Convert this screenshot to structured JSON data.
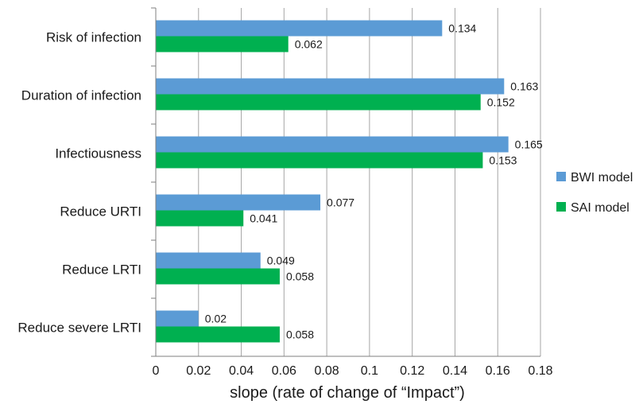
{
  "chart_data": {
    "type": "bar",
    "orientation": "horizontal",
    "categories": [
      "Risk of infection",
      "Duration of infection",
      "Infectiousness",
      "Reduce URTI",
      "Reduce LRTI",
      "Reduce severe LRTI"
    ],
    "series": [
      {
        "name": "BWI model",
        "color": "#5b9bd5",
        "values": [
          0.134,
          0.163,
          0.165,
          0.077,
          0.049,
          0.02
        ],
        "labels": [
          "0.134",
          "0.163",
          "0.165",
          "0.077",
          "0.049",
          "0.02"
        ]
      },
      {
        "name": "SAI model",
        "color": "#00b050",
        "values": [
          0.062,
          0.152,
          0.153,
          0.041,
          0.058,
          0.058
        ],
        "labels": [
          "0.062",
          "0.152",
          "0.153",
          "0.041",
          "0.058",
          "0.058"
        ]
      }
    ],
    "xlabel": "slope (rate of change of “Impact”)",
    "xlim": [
      0,
      0.18
    ],
    "xticks": [
      "0",
      "0.02",
      "0.04",
      "0.06",
      "0.08",
      "0.1",
      "0.12",
      "0.14",
      "0.16",
      "0.18"
    ],
    "grid": "vertical",
    "legend": "right"
  }
}
